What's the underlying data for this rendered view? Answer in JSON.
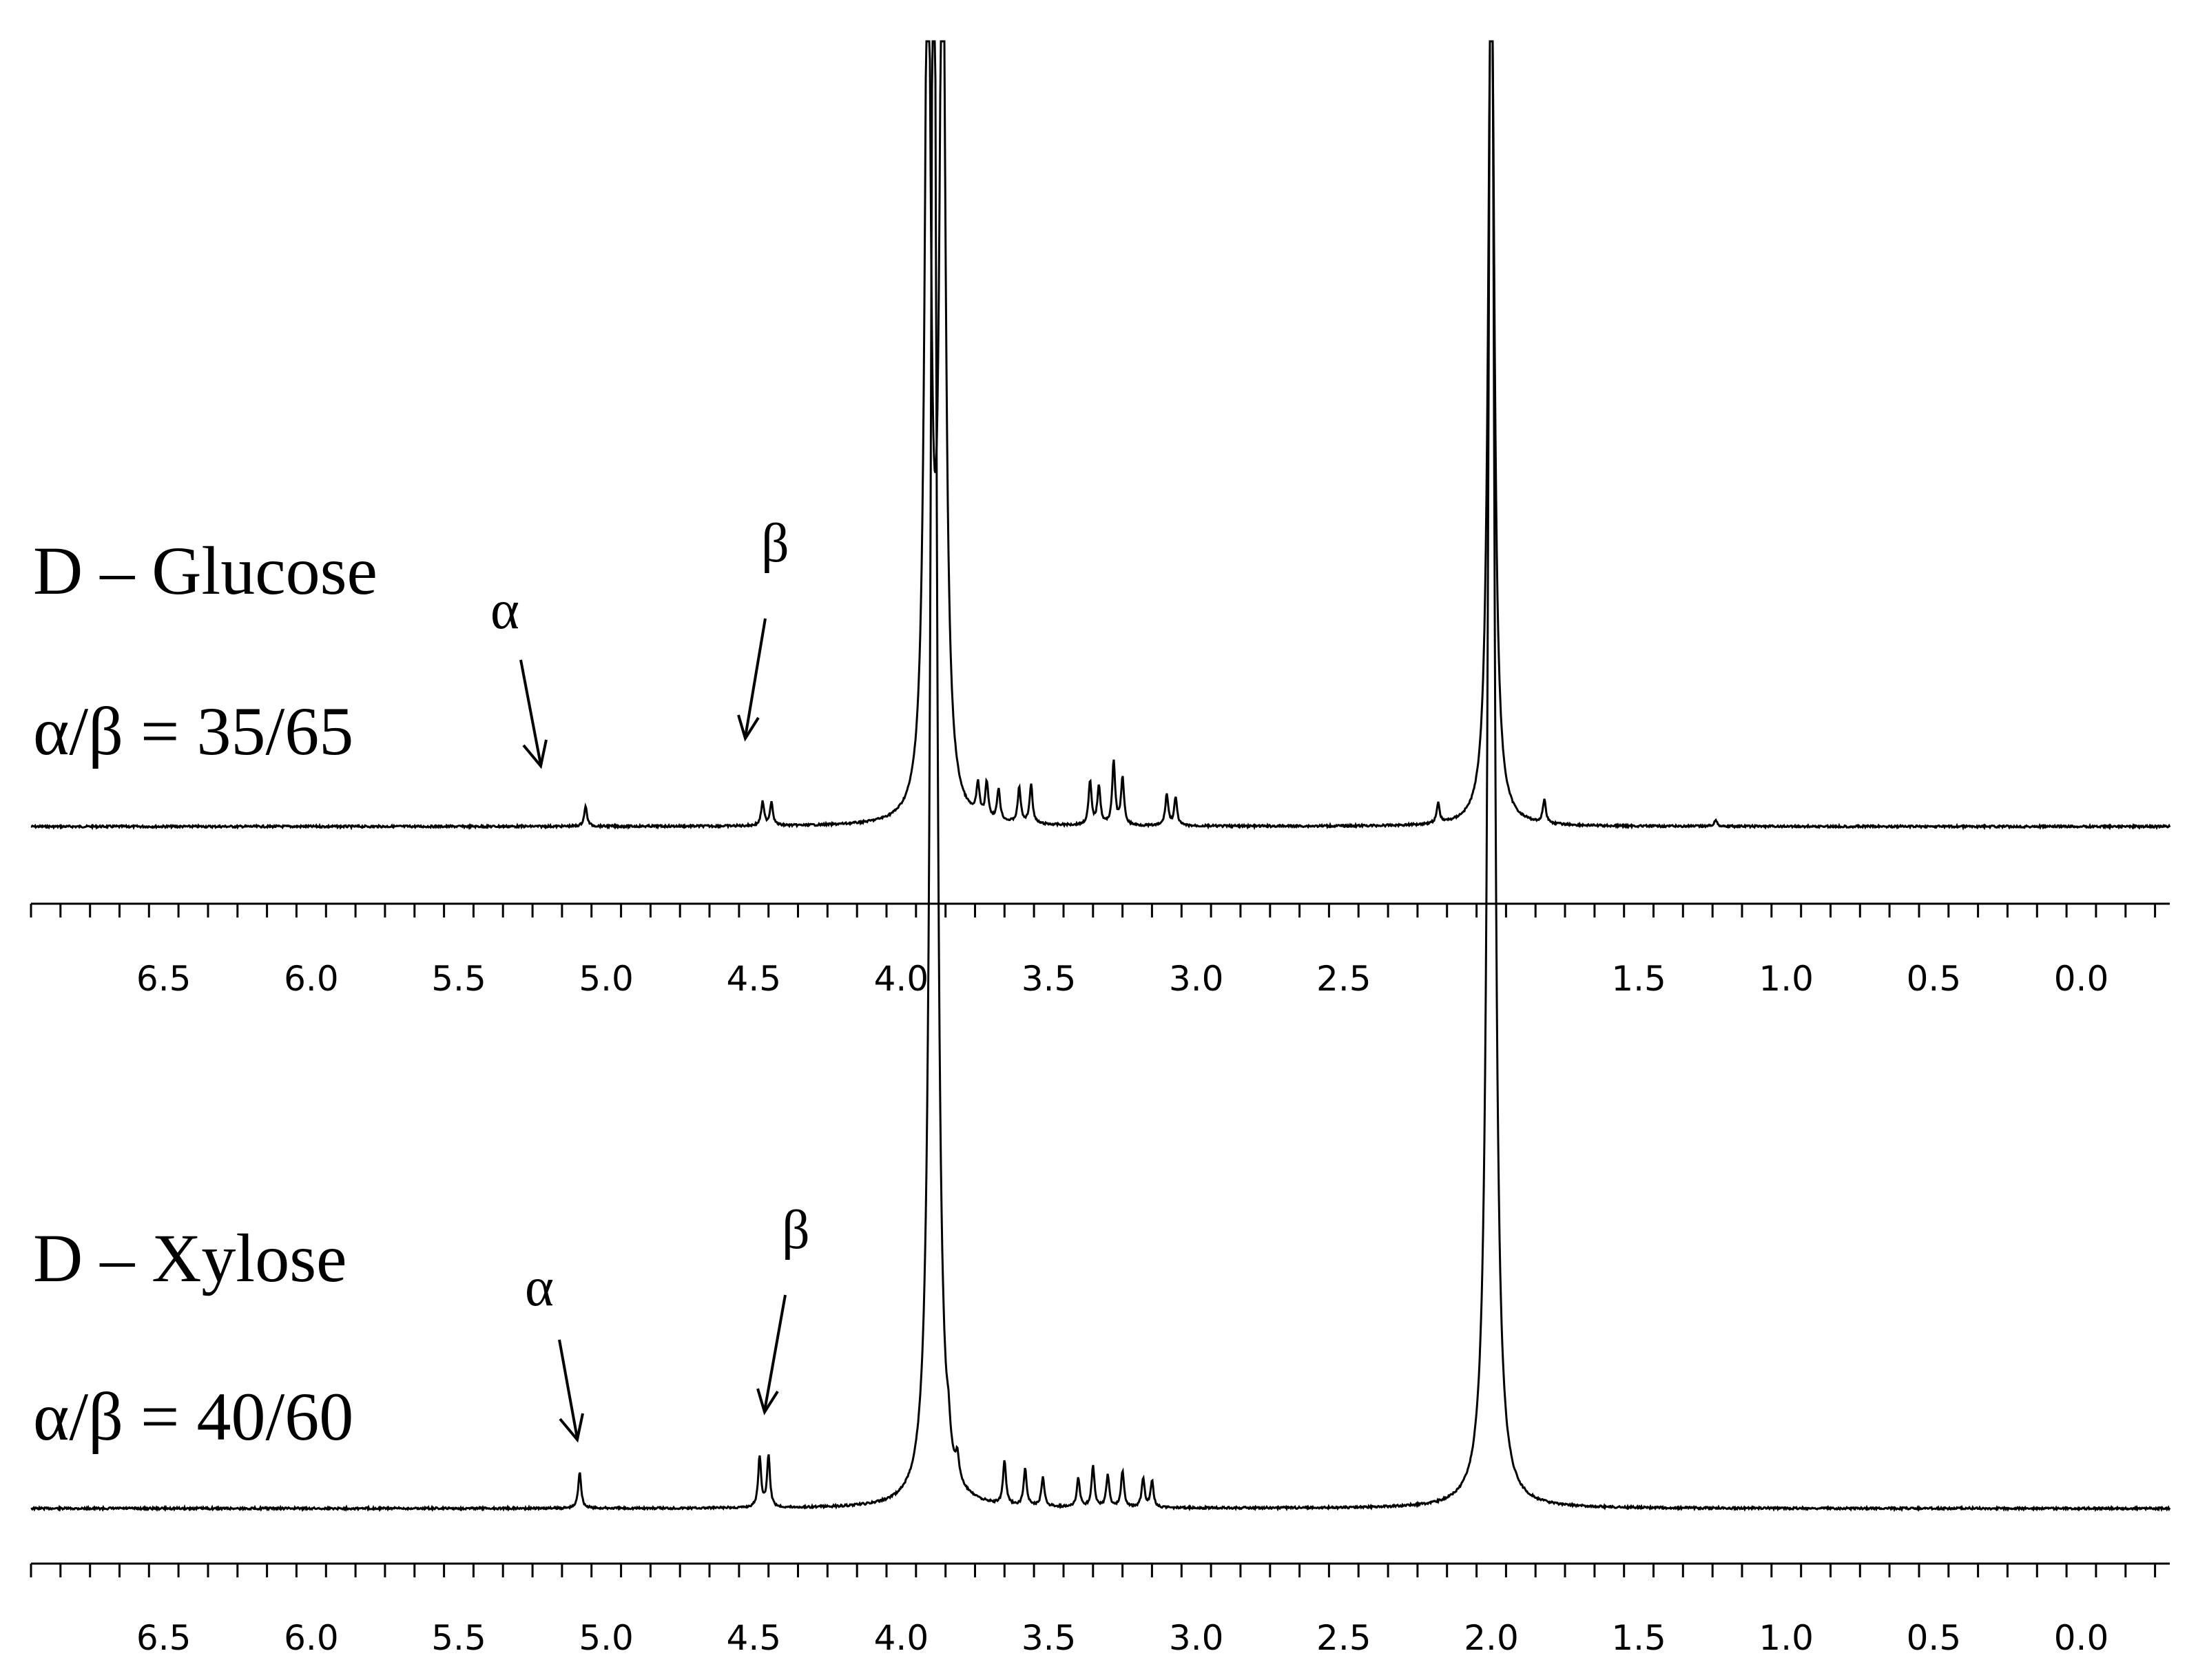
{
  "chart_data": [
    {
      "type": "line",
      "title": "D – Glucose",
      "ratio_label": "α/β = 35/65",
      "xlabel": "",
      "ylabel": "",
      "xlim": [
        6.95,
        -0.3
      ],
      "x_reversed": true,
      "tick_labels": [
        "6.5",
        "6.0",
        "5.5",
        "5.0",
        "4.5",
        "4.0",
        "3.5",
        "3.0",
        "2.5",
        "1.5",
        "1.0",
        "0.5",
        "0.0"
      ],
      "tick_values": [
        6.5,
        6.0,
        5.5,
        5.0,
        4.5,
        4.0,
        3.5,
        3.0,
        2.5,
        1.5,
        1.0,
        0.5,
        0.0
      ],
      "minor_tick_step": 0.1,
      "peaks": [
        {
          "ppm": 5.07,
          "height": 0.025
        },
        {
          "ppm": 4.47,
          "height": 0.03
        },
        {
          "ppm": 4.44,
          "height": 0.03
        },
        {
          "ppm": 3.91,
          "height": 1.2,
          "truncated": true
        },
        {
          "ppm": 3.86,
          "height": 1.2,
          "truncated": true
        },
        {
          "ppm": 3.74,
          "height": 0.04
        },
        {
          "ppm": 3.71,
          "height": 0.045
        },
        {
          "ppm": 3.67,
          "height": 0.04
        },
        {
          "ppm": 3.6,
          "height": 0.045
        },
        {
          "ppm": 3.56,
          "height": 0.05
        },
        {
          "ppm": 3.36,
          "height": 0.055
        },
        {
          "ppm": 3.33,
          "height": 0.05
        },
        {
          "ppm": 3.28,
          "height": 0.08
        },
        {
          "ppm": 3.25,
          "height": 0.06
        },
        {
          "ppm": 3.1,
          "height": 0.04
        },
        {
          "ppm": 3.07,
          "height": 0.035
        },
        {
          "ppm": 2.18,
          "height": 0.025
        },
        {
          "ppm": 2.0,
          "height": 1.2,
          "truncated": true
        },
        {
          "ppm": 1.82,
          "height": 0.03
        },
        {
          "ppm": 1.24,
          "height": 0.008
        }
      ],
      "annotations": [
        {
          "text": "α",
          "target_ppm": 5.07
        },
        {
          "text": "β",
          "target_ppm": 4.45
        }
      ]
    },
    {
      "type": "line",
      "title": "D – Xylose",
      "ratio_label": "α/β = 40/60",
      "xlabel": "",
      "ylabel": "",
      "xlim": [
        6.95,
        -0.3
      ],
      "x_reversed": true,
      "tick_labels": [
        "6.5",
        "6.0",
        "5.5",
        "5.0",
        "4.5",
        "4.0",
        "3.5",
        "3.0",
        "2.5",
        "2.0",
        "1.5",
        "1.0",
        "0.5",
        "0.0"
      ],
      "tick_values": [
        6.5,
        6.0,
        5.5,
        5.0,
        4.5,
        4.0,
        3.5,
        3.0,
        2.5,
        2.0,
        1.5,
        1.0,
        0.5,
        0.0
      ],
      "minor_tick_step": 0.1,
      "peaks": [
        {
          "ppm": 5.09,
          "height": 0.025
        },
        {
          "ppm": 4.48,
          "height": 0.035
        },
        {
          "ppm": 4.45,
          "height": 0.035
        },
        {
          "ppm": 3.89,
          "height": 1.2,
          "truncated": true
        },
        {
          "ppm": 3.84,
          "height": 0.015
        },
        {
          "ppm": 3.81,
          "height": 0.015
        },
        {
          "ppm": 3.65,
          "height": 0.03
        },
        {
          "ppm": 3.58,
          "height": 0.025
        },
        {
          "ppm": 3.52,
          "height": 0.02
        },
        {
          "ppm": 3.4,
          "height": 0.02
        },
        {
          "ppm": 3.35,
          "height": 0.028
        },
        {
          "ppm": 3.3,
          "height": 0.022
        },
        {
          "ppm": 3.25,
          "height": 0.025
        },
        {
          "ppm": 3.18,
          "height": 0.02
        },
        {
          "ppm": 3.15,
          "height": 0.018
        },
        {
          "ppm": 2.0,
          "height": 1.2,
          "truncated": true
        }
      ],
      "annotations": [
        {
          "text": "α",
          "target_ppm": 5.09
        },
        {
          "text": "β",
          "target_ppm": 4.46
        }
      ]
    }
  ]
}
